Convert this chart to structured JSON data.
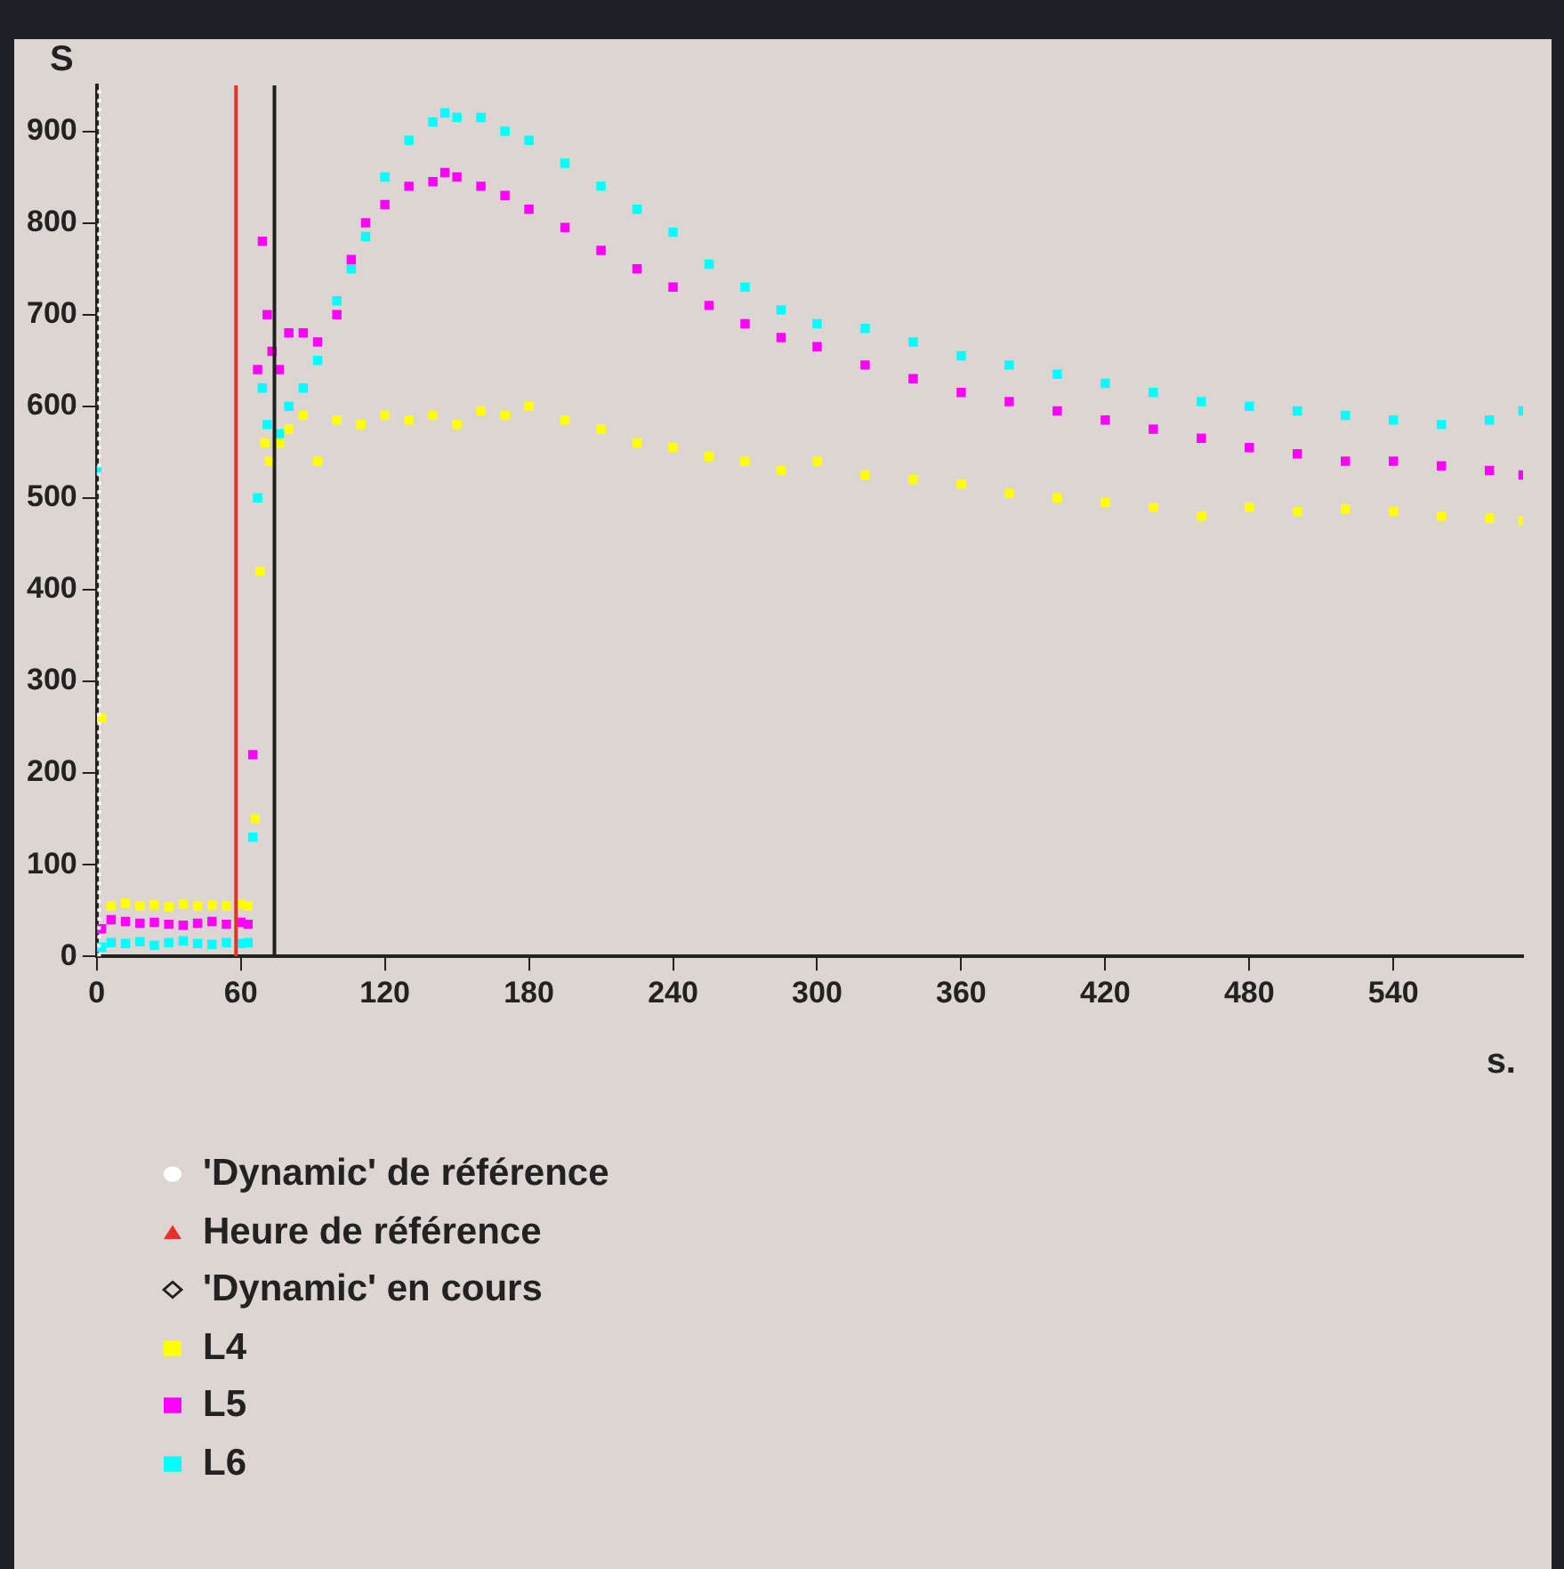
{
  "chart_data": {
    "type": "scatter",
    "xlabel": "s.",
    "ylabel": "S",
    "xlim": [
      0,
      594
    ],
    "ylim": [
      0,
      950
    ],
    "xticks": [
      0,
      60,
      120,
      180,
      240,
      300,
      360,
      420,
      480,
      540
    ],
    "yticks": [
      0,
      100,
      200,
      300,
      400,
      500,
      600,
      700,
      800,
      900
    ],
    "grid": false,
    "legend": "bottom",
    "marker": "square",
    "ref_lines": [
      {
        "axis": "x",
        "value": 1,
        "label": "'Dynamic' de référence",
        "color": "#ffffff",
        "line_style": "dotted"
      },
      {
        "axis": "x",
        "value": 58,
        "label": "Heure de référence",
        "color": "#e8302a"
      },
      {
        "axis": "x",
        "value": 74,
        "label": "'Dynamic' en cours",
        "color": "#202020"
      }
    ],
    "series": [
      {
        "name": "L4",
        "color": "#ffff00",
        "x": [
          2,
          6,
          12,
          18,
          24,
          30,
          36,
          42,
          48,
          54,
          60,
          63,
          66,
          68,
          70,
          72,
          76,
          80,
          86,
          92,
          100,
          110,
          120,
          130,
          140,
          150,
          160,
          170,
          180,
          195,
          210,
          225,
          240,
          255,
          270,
          285,
          300,
          320,
          340,
          360,
          380,
          400,
          420,
          440,
          460,
          480,
          500,
          520,
          540,
          560,
          580,
          594
        ],
        "values": [
          260,
          55,
          58,
          55,
          56,
          54,
          57,
          55,
          56,
          55,
          57,
          55,
          150,
          420,
          560,
          540,
          560,
          575,
          590,
          540,
          585,
          580,
          590,
          585,
          590,
          580,
          595,
          590,
          600,
          585,
          575,
          560,
          555,
          545,
          540,
          530,
          540,
          525,
          520,
          515,
          505,
          500,
          495,
          490,
          480,
          490,
          485,
          488,
          485,
          480,
          478,
          475
        ]
      },
      {
        "name": "L5",
        "color": "#ff00ff",
        "x": [
          2,
          6,
          12,
          18,
          24,
          30,
          36,
          42,
          48,
          54,
          60,
          63,
          65,
          67,
          69,
          71,
          73,
          76,
          80,
          86,
          92,
          100,
          106,
          112,
          120,
          130,
          140,
          145,
          150,
          160,
          170,
          180,
          195,
          210,
          225,
          240,
          255,
          270,
          285,
          300,
          320,
          340,
          360,
          380,
          400,
          420,
          440,
          460,
          480,
          500,
          520,
          540,
          560,
          580,
          594
        ],
        "values": [
          30,
          40,
          38,
          36,
          37,
          35,
          34,
          36,
          38,
          35,
          37,
          35,
          220,
          640,
          780,
          700,
          660,
          640,
          680,
          680,
          670,
          700,
          760,
          800,
          820,
          840,
          845,
          855,
          850,
          840,
          830,
          815,
          795,
          770,
          750,
          730,
          710,
          690,
          675,
          665,
          645,
          630,
          615,
          605,
          595,
          585,
          575,
          565,
          555,
          548,
          540,
          540,
          535,
          530,
          525
        ]
      },
      {
        "name": "L6",
        "color": "#00ffff",
        "x": [
          0,
          2,
          6,
          12,
          18,
          24,
          30,
          36,
          42,
          48,
          54,
          60,
          63,
          65,
          67,
          69,
          71,
          76,
          80,
          86,
          92,
          100,
          106,
          112,
          120,
          130,
          140,
          145,
          150,
          160,
          170,
          180,
          195,
          210,
          225,
          240,
          255,
          270,
          285,
          300,
          320,
          340,
          360,
          380,
          400,
          420,
          440,
          460,
          480,
          500,
          520,
          540,
          560,
          580,
          594
        ],
        "values": [
          530,
          10,
          15,
          14,
          16,
          12,
          15,
          17,
          14,
          13,
          15,
          14,
          15,
          130,
          500,
          620,
          580,
          570,
          600,
          620,
          650,
          715,
          750,
          785,
          850,
          890,
          910,
          920,
          915,
          915,
          900,
          890,
          865,
          840,
          815,
          790,
          755,
          730,
          705,
          690,
          685,
          670,
          655,
          645,
          635,
          625,
          615,
          605,
          600,
          595,
          590,
          585,
          580,
          585,
          595
        ]
      }
    ]
  }
}
